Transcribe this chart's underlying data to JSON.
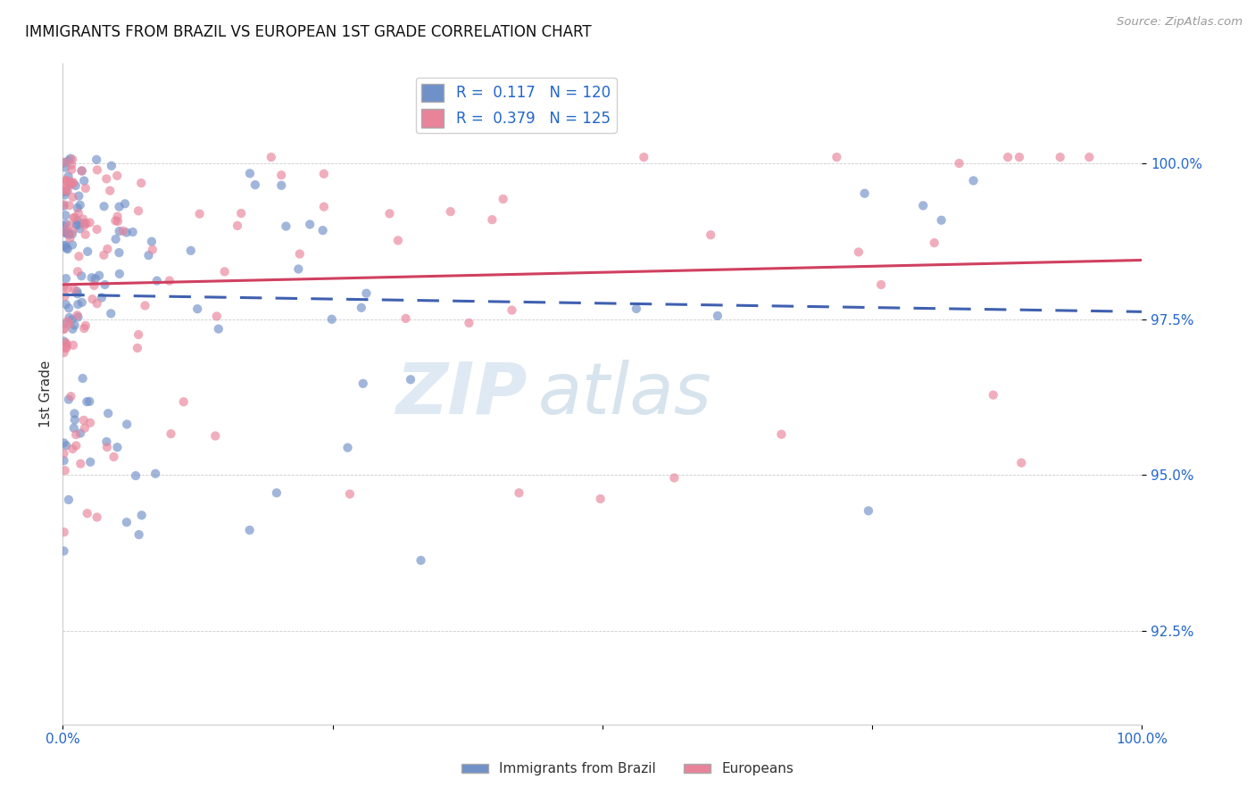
{
  "title": "IMMIGRANTS FROM BRAZIL VS EUROPEAN 1ST GRADE CORRELATION CHART",
  "source": "Source: ZipAtlas.com",
  "ylabel": "1st Grade",
  "ylabel_tick_vals": [
    1.0,
    0.975,
    0.95,
    0.925
  ],
  "xmin": 0.0,
  "xmax": 1.0,
  "ymin": 0.91,
  "ymax": 1.016,
  "brazil_R": 0.117,
  "brazil_N": 120,
  "european_R": 0.379,
  "european_N": 125,
  "brazil_color": "#7090c8",
  "european_color": "#e8839a",
  "brazil_line_color": "#4060b0",
  "european_line_color": "#d04060",
  "legend_label_brazil": "Immigrants from Brazil",
  "legend_label_european": "Europeans",
  "brazil_seed": 42,
  "european_seed": 99
}
